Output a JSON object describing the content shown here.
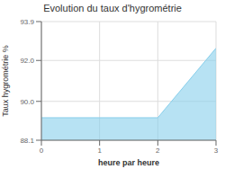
{
  "chart_data": {
    "type": "area",
    "title": "Evolution du taux d'hygrométrie",
    "x_label": "heure par heure",
    "y_label": "Taux hygrométrie %",
    "x": [
      0,
      2,
      3
    ],
    "values": [
      89.2,
      89.2,
      92.6
    ],
    "xlim": [
      0,
      3
    ],
    "xticks": [
      0,
      1,
      2,
      3
    ],
    "ylim": [
      88.1,
      93.9
    ],
    "yticks": [
      88.1,
      {
        "value": 90.0,
        "label": "90.0"
      },
      {
        "value": 92.0,
        "label": "92.0"
      },
      93.9
    ],
    "color": "#87CEEB",
    "grid": true
  }
}
